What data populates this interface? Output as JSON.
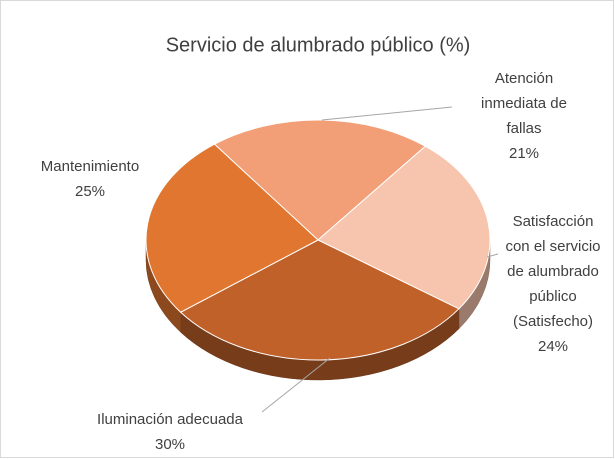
{
  "chart_data": {
    "type": "pie",
    "title": "Servicio de alumbrado público (%)",
    "categories": [
      "Atención inmediata de fallas",
      "Satisfacción con el servicio de alumbrado público (Satisfecho)",
      "Iluminación adecuada",
      "Mantenimiento"
    ],
    "values": [
      21,
      24,
      30,
      25
    ],
    "value_labels": [
      "21%",
      "24%",
      "30%",
      "25%"
    ],
    "colors": [
      "#f29f77",
      "#f7c5ad",
      "#c0612a",
      "#e0762f"
    ]
  }
}
